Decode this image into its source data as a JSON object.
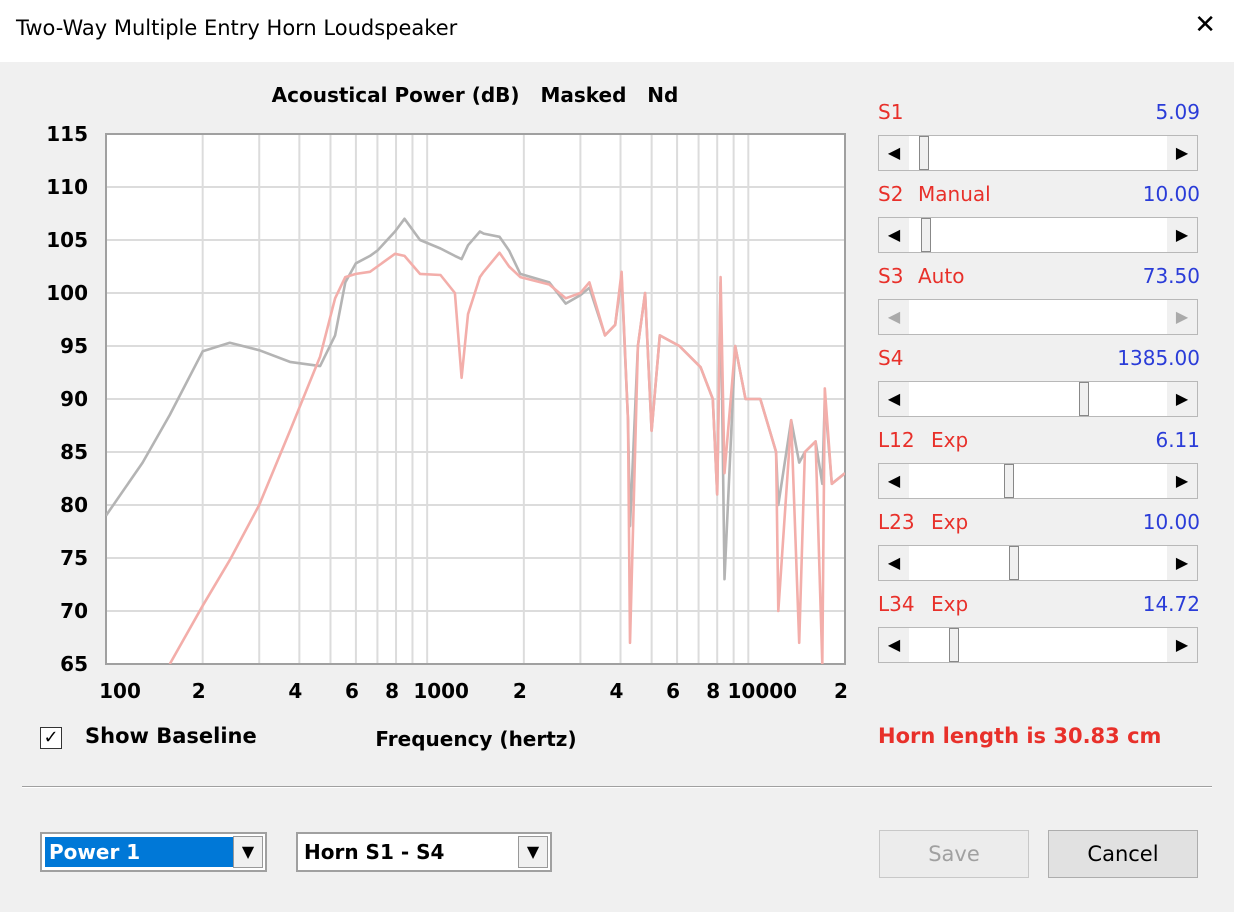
{
  "window": {
    "title": "Two-Way Multiple Entry Horn Loudspeaker",
    "close": "✕"
  },
  "chart_data": {
    "type": "line",
    "title": "Acoustical Power (dB)   Masked   Nd",
    "x_label": "Frequency (hertz)",
    "x_scale": "log",
    "grid": true,
    "xlim": [
      100,
      20000
    ],
    "ylim": [
      65,
      115
    ],
    "xticks": [
      100,
      {
        "value": 200,
        "label": "2"
      },
      {
        "value": 400,
        "label": "4"
      },
      {
        "value": 600,
        "label": "6"
      },
      {
        "value": 800,
        "label": "8"
      },
      1000,
      {
        "value": 2000,
        "label": "2"
      },
      {
        "value": 4000,
        "label": "4"
      },
      {
        "value": 6000,
        "label": "6"
      },
      {
        "value": 8000,
        "label": "8"
      },
      10000,
      {
        "value": 20000,
        "label": "2"
      }
    ],
    "x_minor_gridlines": [
      300,
      500,
      700,
      900,
      3000,
      5000,
      7000,
      9000
    ],
    "yticks": [
      65,
      70,
      75,
      80,
      85,
      90,
      95,
      100,
      105,
      110,
      115
    ],
    "x": [
      100,
      130,
      158,
      200,
      243,
      300,
      374,
      464,
      517,
      556,
      600,
      664,
      700,
      794,
      850,
      950,
      1100,
      1220,
      1280,
      1340,
      1460,
      1500,
      1680,
      1800,
      1950,
      2400,
      2700,
      3000,
      3200,
      3580,
      3850,
      4030,
      4220,
      4280,
      4530,
      4770,
      5000,
      5300,
      6100,
      7100,
      7750,
      8000,
      8200,
      8430,
      9100,
      9800,
      10900,
      12200,
      12400,
      13600,
      14400,
      15000,
      16200,
      17000,
      17300,
      18200,
      20000
    ],
    "series": [
      {
        "name": "Baseline",
        "color": "#b4b4b4",
        "values": [
          79,
          84,
          88.5,
          94.5,
          95.3,
          94.6,
          93.5,
          93.1,
          96,
          101,
          102.8,
          103.5,
          104,
          105.8,
          107,
          105,
          104.2,
          103.5,
          103.2,
          104.5,
          105.8,
          105.6,
          105.3,
          104,
          101.8,
          101,
          99,
          99.8,
          100.5,
          96,
          97,
          101.5,
          88,
          78,
          95,
          100,
          87,
          96,
          95,
          93,
          90,
          81,
          101,
          73,
          95,
          90,
          90,
          85,
          80,
          88,
          84,
          85,
          86,
          82,
          90,
          82,
          83
        ]
      },
      {
        "name": "Power 1",
        "color": "#f3aeaa",
        "values": [
          null,
          null,
          65,
          70.5,
          74.8,
          80,
          87,
          94,
          99.5,
          101.5,
          101.8,
          102,
          102.5,
          103.7,
          103.5,
          101.8,
          101.7,
          100,
          92,
          98,
          101.5,
          102,
          103.8,
          102.5,
          101.5,
          100.8,
          99.5,
          100,
          101,
          96,
          97,
          102,
          88,
          67,
          95,
          100,
          87,
          96,
          95,
          93,
          90,
          81,
          101.5,
          83,
          95,
          90,
          90,
          85,
          70,
          88,
          67,
          85,
          86,
          65,
          91,
          82,
          83
        ]
      }
    ]
  },
  "show_baseline": {
    "label": "Show Baseline",
    "checked": true
  },
  "sliders": [
    {
      "name": "S1",
      "mode": "",
      "value": "5.09"
    },
    {
      "name": "S2",
      "mode": "Manual",
      "value": "10.00"
    },
    {
      "name": "S3",
      "mode": "Auto",
      "value": "73.50"
    },
    {
      "name": "S4",
      "mode": "",
      "value": "1385.00"
    },
    {
      "name": "L12",
      "mode": "Exp",
      "value": "6.11"
    },
    {
      "name": "L23",
      "mode": "Exp",
      "value": "10.00"
    },
    {
      "name": "L34",
      "mode": "Exp",
      "value": "14.72"
    }
  ],
  "horn_length": "Horn length is 30.83 cm",
  "dropdowns": [
    "Power 1",
    "Horn S1 - S4"
  ],
  "buttons": {
    "save": "Save",
    "cancel": "Cancel"
  }
}
